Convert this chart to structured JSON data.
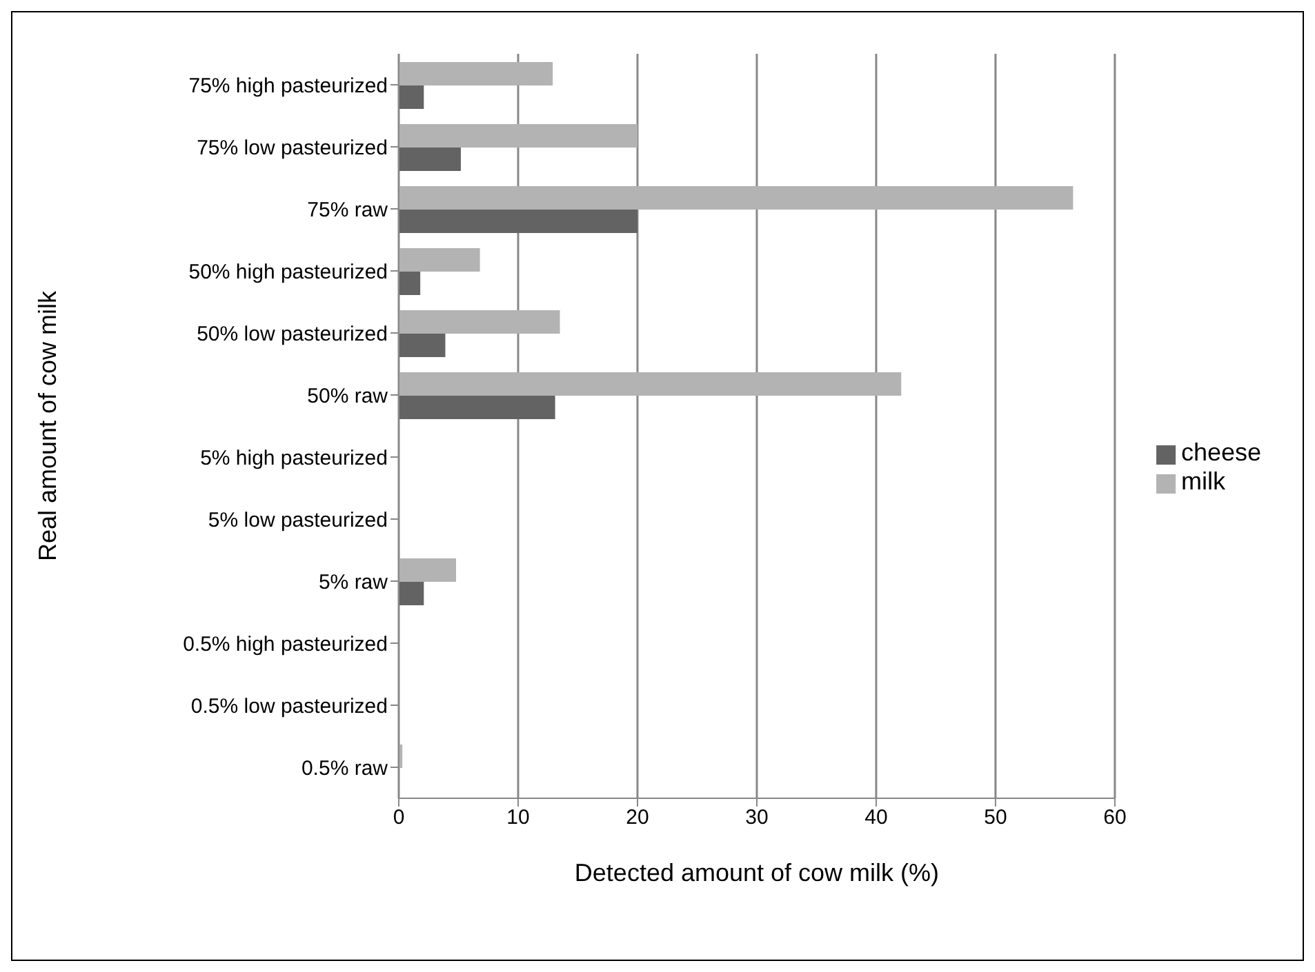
{
  "chart_data": {
    "type": "bar",
    "orientation": "horizontal",
    "xlabel": "Detected amount of cow milk (%)",
    "ylabel": "Real amount of cow milk",
    "categories": [
      "75% high pasteurized",
      "75% low pasteurized",
      "75% raw",
      "50% high pasteurized",
      "50% low pasteurized",
      "50% raw",
      "5% high pasteurized",
      "5% low pasteurized",
      "5% raw",
      "0.5% high pasteurized",
      "0.5%  low pasteurized",
      "0.5% raw"
    ],
    "series": [
      {
        "name": "milk",
        "color": "#b3b3b3",
        "values": [
          12.9,
          20,
          56.5,
          6.8,
          13.5,
          42.1,
          0,
          0,
          4.8,
          0,
          0,
          0.3
        ]
      },
      {
        "name": "cheese",
        "color": "#636363",
        "values": [
          2.1,
          5.2,
          20,
          1.8,
          3.9,
          13.1,
          0,
          0,
          2.1,
          0,
          0,
          0
        ]
      }
    ],
    "xlim": [
      0,
      60
    ],
    "xticks": [
      0,
      10,
      20,
      30,
      40,
      50,
      60
    ],
    "grid": "x",
    "legend": "right"
  }
}
